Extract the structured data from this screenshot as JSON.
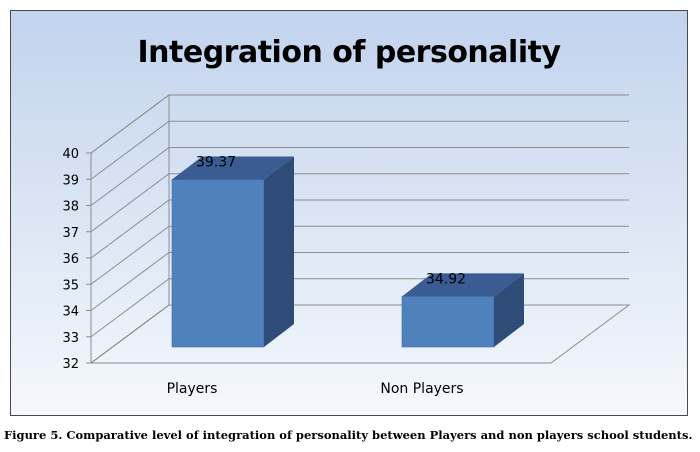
{
  "caption": "Figure 5. Comparative level of integration of personality between Players and non players school students.",
  "chart_data": {
    "type": "bar",
    "title": "Integration of personality",
    "categories": [
      "Players",
      "Non Players"
    ],
    "values": [
      39.37,
      34.92
    ],
    "data_labels": [
      "39.37",
      "34.92"
    ],
    "ylim": [
      32,
      40
    ],
    "yticks": [
      "32",
      "33",
      "34",
      "35",
      "36",
      "37",
      "38",
      "39",
      "40"
    ],
    "grid": true,
    "three_d": true,
    "bar_color": "#4f81bd",
    "bar_side_color": "#2f4b78",
    "bar_top_color": "#3a5c92"
  }
}
